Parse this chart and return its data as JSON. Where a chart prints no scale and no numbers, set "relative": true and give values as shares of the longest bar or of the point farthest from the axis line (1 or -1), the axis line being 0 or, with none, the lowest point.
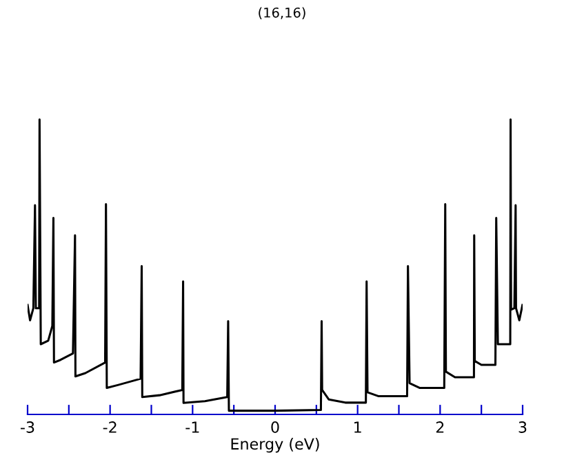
{
  "chart_data": {
    "type": "line",
    "title": "(16,16)",
    "xlabel": "Energy (eV)",
    "relative": true,
    "xlim": [
      -3,
      3
    ],
    "xticks": [
      -3,
      {
        "value": -2.5,
        "label": null
      },
      -2,
      {
        "value": -1.5,
        "label": null
      },
      -1,
      {
        "value": -0.5,
        "label": null
      },
      0,
      {
        "value": 0.5,
        "label": null
      },
      1,
      {
        "value": 1.5,
        "label": null
      },
      2,
      {
        "value": 2.5,
        "label": null
      },
      3
    ],
    "tick_labels": "x",
    "grid": false,
    "legend": false,
    "marker": "none",
    "line_style": "solid",
    "series": [
      {
        "color": "#000000",
        "x": [
          -3.0,
          -2.97,
          -2.93,
          -2.91,
          -2.9,
          -2.86,
          -2.855,
          -2.84,
          -2.75,
          -2.7,
          -2.687,
          -2.68,
          -2.6,
          -2.45,
          -2.425,
          -2.42,
          -2.3,
          -2.06,
          -2.05,
          -2.04,
          -1.9,
          -1.63,
          -1.617,
          -1.61,
          -1.4,
          -1.125,
          -1.115,
          -1.11,
          -0.85,
          -0.58,
          -0.569,
          -0.56,
          0,
          0.555,
          0.564,
          0.57,
          0.65,
          0.85,
          1.1,
          1.109,
          1.12,
          1.25,
          1.6,
          1.61,
          1.63,
          1.75,
          2.05,
          2.062,
          2.07,
          2.18,
          2.41,
          2.413,
          2.42,
          2.5,
          2.67,
          2.68,
          2.7,
          2.76,
          2.85,
          2.854,
          2.86,
          2.9,
          2.915,
          2.92,
          2.96,
          2.998
        ],
        "values": [
          0.371,
          0.319,
          0.36,
          0.709,
          0.36,
          0.36,
          1.0,
          0.238,
          0.25,
          0.3,
          0.666,
          0.176,
          0.185,
          0.207,
          0.607,
          0.129,
          0.14,
          0.176,
          0.713,
          0.09,
          0.1,
          0.121,
          0.503,
          0.059,
          0.065,
          0.083,
          0.451,
          0.039,
          0.045,
          0.059,
          0.316,
          0.0126,
          0.0126,
          0.015,
          0.316,
          0.083,
          0.051,
          0.04,
          0.04,
          0.451,
          0.075,
          0.062,
          0.062,
          0.503,
          0.106,
          0.09,
          0.09,
          0.713,
          0.145,
          0.126,
          0.126,
          0.607,
          0.181,
          0.168,
          0.168,
          0.666,
          0.238,
          0.238,
          0.238,
          1.0,
          0.355,
          0.36,
          0.709,
          0.36,
          0.319,
          0.371
        ]
      }
    ]
  }
}
